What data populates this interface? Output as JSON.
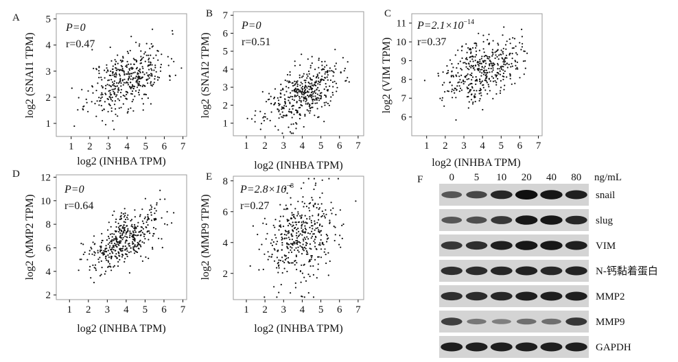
{
  "panels": [
    {
      "letter": "A",
      "stat_p": "P=0",
      "stat_r": "r=0.47",
      "xlabel": "log2 (INHBA TPM)",
      "ylabel": "log2 (SNAI1 TPM)",
      "chart_data": {
        "type": "scatter",
        "xlabel": "log2 (INHBA TPM)",
        "ylabel": "log2 (SNAI1 TPM)",
        "xlim": [
          0.2,
          7.2
        ],
        "ylim": [
          0.5,
          5.2
        ],
        "xticks": [
          1,
          2,
          3,
          4,
          5,
          6,
          7
        ],
        "yticks": [
          1,
          2,
          3,
          4,
          5
        ],
        "n_points": 420,
        "r": 0.47,
        "p": "0",
        "x_center": 4.0,
        "x_sd": 1.05,
        "y_center": 2.7,
        "y_sd": 0.65,
        "seed": 11
      }
    },
    {
      "letter": "B",
      "stat_p": "P=0",
      "stat_r": "r=0.51",
      "xlabel": "log2 (INHBA TPM)",
      "ylabel": "log2 (SNAI2 TPM)",
      "chart_data": {
        "type": "scatter",
        "xlabel": "log2 (INHBA TPM)",
        "ylabel": "log2 (SNAI2 TPM)",
        "xlim": [
          0.3,
          7.3
        ],
        "ylim": [
          0.3,
          7.2
        ],
        "xticks": [
          1,
          2,
          3,
          4,
          5,
          6,
          7
        ],
        "yticks": [
          1,
          2,
          3,
          4,
          5,
          6,
          7
        ],
        "n_points": 420,
        "r": 0.51,
        "p": "0",
        "x_center": 4.0,
        "x_sd": 1.0,
        "y_center": 2.6,
        "y_sd": 0.85,
        "seed": 23
      }
    },
    {
      "letter": "C",
      "stat_p_base": "P=2.1×10",
      "stat_p_exp": "−14",
      "stat_r": "r=0.37",
      "xlabel": "log2 (INHBA TPM)",
      "ylabel": "log2 (VIM TPM)",
      "chart_data": {
        "type": "scatter",
        "xlabel": "log2 (INHBA TPM)",
        "ylabel": "log2 (VIM TPM)",
        "xlim": [
          0.2,
          7.2
        ],
        "ylim": [
          5.0,
          11.5
        ],
        "xticks": [
          1,
          2,
          3,
          4,
          5,
          6,
          7
        ],
        "yticks": [
          6,
          7,
          8,
          9,
          10,
          11
        ],
        "n_points": 420,
        "r": 0.37,
        "p": "2.1×10^-14",
        "x_center": 4.0,
        "x_sd": 1.0,
        "y_center": 8.6,
        "y_sd": 0.85,
        "seed": 37
      }
    },
    {
      "letter": "D",
      "stat_p": "P=0",
      "stat_r": "r=0.64",
      "xlabel": "log2 (INHBA TPM)",
      "ylabel": "log2 (MMP2 TPM)",
      "chart_data": {
        "type": "scatter",
        "xlabel": "log2 (INHBA TPM)",
        "ylabel": "log2 (MMP2 TPM)",
        "xlim": [
          0.3,
          7.2
        ],
        "ylim": [
          1.6,
          12.2
        ],
        "xticks": [
          1,
          2,
          3,
          4,
          5,
          6,
          7
        ],
        "yticks": [
          2,
          4,
          6,
          8,
          10,
          12
        ],
        "n_points": 420,
        "r": 0.64,
        "p": "0",
        "x_center": 3.9,
        "x_sd": 1.0,
        "y_center": 6.7,
        "y_sd": 1.4,
        "seed": 41
      }
    },
    {
      "letter": "E",
      "stat_p_base": "P=2.8×10",
      "stat_p_exp": "−8",
      "stat_r": "r=0.27",
      "xlabel": "log2 (INHBA TPM)",
      "ylabel": "log2 (MMP9 TPM)",
      "chart_data": {
        "type": "scatter",
        "xlabel": "log2 (INHBA TPM)",
        "ylabel": "log2 (MMP9 TPM)",
        "xlim": [
          0.3,
          7.3
        ],
        "ylim": [
          0.3,
          8.3
        ],
        "xticks": [
          1,
          2,
          3,
          4,
          5,
          6,
          7
        ],
        "yticks": [
          2,
          4,
          6,
          8
        ],
        "n_points": 420,
        "r": 0.27,
        "p": "2.8×10^-8",
        "x_center": 4.0,
        "x_sd": 1.05,
        "y_center": 4.3,
        "y_sd": 1.5,
        "seed": 53
      }
    }
  ],
  "blot": {
    "letter": "F",
    "concentrations": [
      "0",
      "5",
      "10",
      "20",
      "40",
      "80"
    ],
    "unit": "ng/mL",
    "rows": [
      {
        "label": "snail",
        "intensity": [
          0.55,
          0.65,
          0.85,
          1.0,
          0.95,
          0.9
        ]
      },
      {
        "label": "slug",
        "intensity": [
          0.55,
          0.6,
          0.75,
          0.95,
          0.95,
          0.85
        ]
      },
      {
        "label": "VIM",
        "intensity": [
          0.75,
          0.8,
          0.9,
          0.95,
          0.95,
          0.9
        ]
      },
      {
        "label": "N-钙黏着蛋白",
        "intensity": [
          0.8,
          0.82,
          0.85,
          0.88,
          0.85,
          0.88
        ]
      },
      {
        "label": "MMP2",
        "intensity": [
          0.8,
          0.82,
          0.85,
          0.9,
          0.9,
          0.9
        ]
      },
      {
        "label": "MMP9",
        "intensity": [
          0.7,
          0.35,
          0.3,
          0.4,
          0.4,
          0.75
        ]
      },
      {
        "label": "GAPDH",
        "intensity": [
          0.9,
          0.9,
          0.9,
          0.9,
          0.9,
          0.9
        ]
      }
    ]
  }
}
